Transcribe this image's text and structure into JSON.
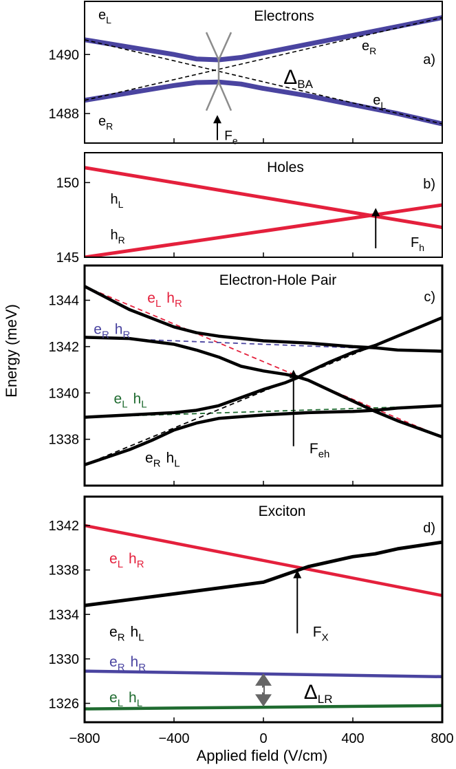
{
  "figure": {
    "ylabel": "Energy (meV)",
    "xlabel": "Applied field (V/cm)",
    "xticks": [
      -800,
      -400,
      0,
      400,
      800
    ],
    "xlim": [
      -800,
      800
    ]
  },
  "colors": {
    "blue": "#4a44a0",
    "red": "#e4203c",
    "black": "#000000",
    "green": "#1f6b30",
    "gray": "#8c8c8c"
  },
  "chart_data": [
    {
      "id": "a",
      "type": "line",
      "title": "Electrons",
      "panel_label": "a)",
      "ylim": [
        1487,
        1491.8
      ],
      "yticks": [
        1488,
        1490
      ],
      "series": [
        {
          "key": "upper",
          "points": [
            [
              -800,
              1490.5
            ],
            [
              -600,
              1490.25
            ],
            [
              -400,
              1490.0
            ],
            [
              -300,
              1489.85
            ],
            [
              -200,
              1489.82
            ],
            [
              -100,
              1489.9
            ],
            [
              0,
              1490.05
            ],
            [
              200,
              1490.35
            ],
            [
              400,
              1490.65
            ],
            [
              600,
              1490.95
            ],
            [
              800,
              1491.25
            ]
          ]
        },
        {
          "key": "lower",
          "points": [
            [
              -800,
              1488.45
            ],
            [
              -600,
              1488.7
            ],
            [
              -400,
              1488.95
            ],
            [
              -300,
              1489.05
            ],
            [
              -200,
              1489.07
            ],
            [
              -100,
              1489.0
            ],
            [
              0,
              1488.85
            ],
            [
              200,
              1488.6
            ],
            [
              400,
              1488.3
            ],
            [
              600,
              1488.0
            ],
            [
              800,
              1487.65
            ]
          ]
        },
        {
          "key": "diabatic_L",
          "points": [
            [
              -800,
              1490.5
            ],
            [
              800,
              1487.65
            ]
          ]
        },
        {
          "key": "diabatic_R",
          "points": [
            [
              -800,
              1488.45
            ],
            [
              800,
              1491.25
            ]
          ]
        }
      ],
      "labels": [
        {
          "key": "eL_tl",
          "base": "e",
          "sub": "L",
          "x": -800,
          "y": 1491.2
        },
        {
          "key": "eR_bl",
          "base": "e",
          "sub": "R",
          "x": -800,
          "y": 1487.6
        },
        {
          "key": "eR_tr",
          "base": "e",
          "sub": "R",
          "x": 440,
          "y": 1490.15
        },
        {
          "key": "eL_br",
          "base": "e",
          "sub": "L",
          "x": 490,
          "y": 1488.3
        },
        {
          "key": "delta",
          "base": "Δ",
          "sub": "BA",
          "x": 90,
          "y": 1489.0
        },
        {
          "key": "marker",
          "base": "F",
          "sub": "e",
          "x": -190,
          "y": 1487.1
        }
      ],
      "anticrossing_x": -200
    },
    {
      "id": "b",
      "type": "line",
      "title": "Holes",
      "panel_label": "b)",
      "ylim": [
        145,
        152
      ],
      "yticks": [
        145,
        150
      ],
      "series": [
        {
          "key": "h_down",
          "points": [
            [
              -800,
              151.0
            ],
            [
              800,
              147.0
            ]
          ]
        },
        {
          "key": "h_up",
          "points": [
            [
              -800,
              145.0
            ],
            [
              800,
              148.5
            ]
          ]
        }
      ],
      "labels": [
        {
          "key": "hL",
          "base": "h",
          "sub": "L",
          "x": -740,
          "y": 148.6
        },
        {
          "key": "hR",
          "base": "h",
          "sub": "R",
          "x": -740,
          "y": 146.2
        },
        {
          "key": "marker",
          "base": "F",
          "sub": "h",
          "x": 520,
          "y": 145.7
        }
      ],
      "crossing_x": 490
    },
    {
      "id": "c",
      "type": "line",
      "title": "Electron-Hole Pair",
      "panel_label": "c)",
      "ylim": [
        1336,
        1345.5
      ],
      "yticks": [
        1338,
        1340,
        1342,
        1344
      ],
      "series": [
        {
          "key": "s1",
          "points": [
            [
              -800,
              1344.6
            ],
            [
              -600,
              1343.6
            ],
            [
              -400,
              1342.85
            ],
            [
              -300,
              1342.6
            ],
            [
              -200,
              1342.45
            ],
            [
              0,
              1342.25
            ],
            [
              200,
              1342.15
            ],
            [
              400,
              1342.0
            ],
            [
              500,
              1341.95
            ],
            [
              600,
              1341.85
            ],
            [
              800,
              1341.8
            ]
          ]
        },
        {
          "key": "s2",
          "points": [
            [
              -800,
              1342.4
            ],
            [
              -600,
              1342.35
            ],
            [
              -400,
              1342.1
            ],
            [
              -300,
              1341.85
            ],
            [
              -200,
              1341.55
            ],
            [
              -100,
              1341.15
            ],
            [
              0,
              1340.95
            ],
            [
              100,
              1340.8
            ],
            [
              150,
              1340.7
            ],
            [
              200,
              1340.55
            ],
            [
              300,
              1340.1
            ],
            [
              400,
              1339.65
            ],
            [
              500,
              1339.2
            ],
            [
              600,
              1338.8
            ],
            [
              700,
              1338.45
            ],
            [
              800,
              1338.1
            ]
          ]
        },
        {
          "key": "s3",
          "points": [
            [
              -800,
              1338.95
            ],
            [
              -600,
              1339.05
            ],
            [
              -400,
              1339.15
            ],
            [
              -300,
              1339.25
            ],
            [
              -200,
              1339.45
            ],
            [
              -100,
              1339.8
            ],
            [
              0,
              1340.15
            ],
            [
              100,
              1340.45
            ],
            [
              150,
              1340.65
            ],
            [
              200,
              1340.9
            ],
            [
              300,
              1341.35
            ],
            [
              400,
              1341.75
            ],
            [
              500,
              1342.05
            ],
            [
              600,
              1342.45
            ],
            [
              700,
              1342.85
            ],
            [
              800,
              1343.25
            ]
          ]
        },
        {
          "key": "s4",
          "points": [
            [
              -800,
              1336.9
            ],
            [
              -600,
              1337.55
            ],
            [
              -500,
              1337.95
            ],
            [
              -400,
              1338.4
            ],
            [
              -300,
              1338.7
            ],
            [
              -200,
              1338.9
            ],
            [
              0,
              1339.05
            ],
            [
              200,
              1339.15
            ],
            [
              400,
              1339.2
            ],
            [
              500,
              1339.25
            ],
            [
              600,
              1339.35
            ],
            [
              800,
              1339.45
            ]
          ]
        }
      ],
      "diabatic": [
        {
          "key": "eLhR",
          "color": "red",
          "points": [
            [
              -800,
              1344.6
            ],
            [
              800,
              1338.1
            ]
          ]
        },
        {
          "key": "eRhR",
          "color": "blue",
          "points": [
            [
              -800,
              1342.4
            ],
            [
              800,
              1341.8
            ]
          ]
        },
        {
          "key": "eLhL",
          "color": "green",
          "points": [
            [
              -800,
              1338.95
            ],
            [
              800,
              1339.45
            ]
          ]
        },
        {
          "key": "eRhL",
          "color": "black",
          "points": [
            [
              -800,
              1336.9
            ],
            [
              800,
              1343.25
            ]
          ]
        }
      ],
      "labels": [
        {
          "key": "eLhR",
          "color": "red",
          "parts": [
            [
              "e",
              "L"
            ],
            [
              "h",
              "R"
            ]
          ],
          "x": -550,
          "y": 1343.9
        },
        {
          "key": "eRhR",
          "color": "blue",
          "parts": [
            [
              "e",
              "R"
            ],
            [
              "h",
              "R"
            ]
          ],
          "x": -790,
          "y": 1342.55
        },
        {
          "key": "eLhL",
          "color": "green",
          "parts": [
            [
              "e",
              "L"
            ],
            [
              "h",
              "L"
            ]
          ],
          "x": -700,
          "y": 1339.55
        },
        {
          "key": "eRhL",
          "color": "black",
          "parts": [
            [
              "e",
              "R"
            ],
            [
              "h",
              "L"
            ]
          ],
          "x": -560,
          "y": 1337.0
        },
        {
          "key": "marker",
          "color": "black",
          "parts": [
            [
              "F",
              "eh"
            ]
          ],
          "x": 175,
          "y": 1337.4
        }
      ],
      "marker_x": 150
    },
    {
      "id": "d",
      "type": "line",
      "title": "Exciton",
      "panel_label": "d)",
      "ylim": [
        1324.3,
        1344.6
      ],
      "yticks": [
        1326,
        1330,
        1334,
        1338,
        1342
      ],
      "series": [
        {
          "key": "red",
          "color": "red",
          "points": [
            [
              -800,
              1342.0
            ],
            [
              800,
              1335.7
            ]
          ]
        },
        {
          "key": "black",
          "color": "black",
          "points": [
            [
              -800,
              1334.8
            ],
            [
              0,
              1336.9
            ],
            [
              200,
              1338.3
            ],
            [
              400,
              1339.2
            ],
            [
              500,
              1339.45
            ],
            [
              600,
              1339.9
            ],
            [
              800,
              1340.5
            ]
          ]
        },
        {
          "key": "blue",
          "color": "blue",
          "points": [
            [
              -800,
              1328.9
            ],
            [
              800,
              1328.4
            ]
          ]
        },
        {
          "key": "green",
          "color": "green",
          "points": [
            [
              -800,
              1325.5
            ],
            [
              800,
              1325.8
            ]
          ]
        }
      ],
      "labels": [
        {
          "key": "eLhR",
          "color": "red",
          "parts": [
            [
              "e",
              "L"
            ],
            [
              "h",
              "R"
            ]
          ],
          "x": -720,
          "y": 1338.6
        },
        {
          "key": "eRhL",
          "color": "black",
          "parts": [
            [
              "e",
              "R"
            ],
            [
              "h",
              "L"
            ]
          ],
          "x": -720,
          "y": 1332.0
        },
        {
          "key": "eRhR",
          "color": "blue",
          "parts": [
            [
              "e",
              "R"
            ],
            [
              "h",
              "R"
            ]
          ],
          "x": -720,
          "y": 1329.3
        },
        {
          "key": "eLhL",
          "color": "green",
          "parts": [
            [
              "e",
              "L"
            ],
            [
              "h",
              "L"
            ]
          ],
          "x": -720,
          "y": 1326.1
        },
        {
          "key": "marker",
          "color": "black",
          "parts": [
            [
              "F",
              "X"
            ]
          ],
          "x": 190,
          "y": 1332.0
        },
        {
          "key": "delta",
          "color": "black",
          "parts": [
            [
              "Δ",
              "LR"
            ]
          ],
          "x": 150,
          "y": 1326.4
        }
      ],
      "marker_x": 170,
      "gap_arrow_x": 0
    }
  ]
}
